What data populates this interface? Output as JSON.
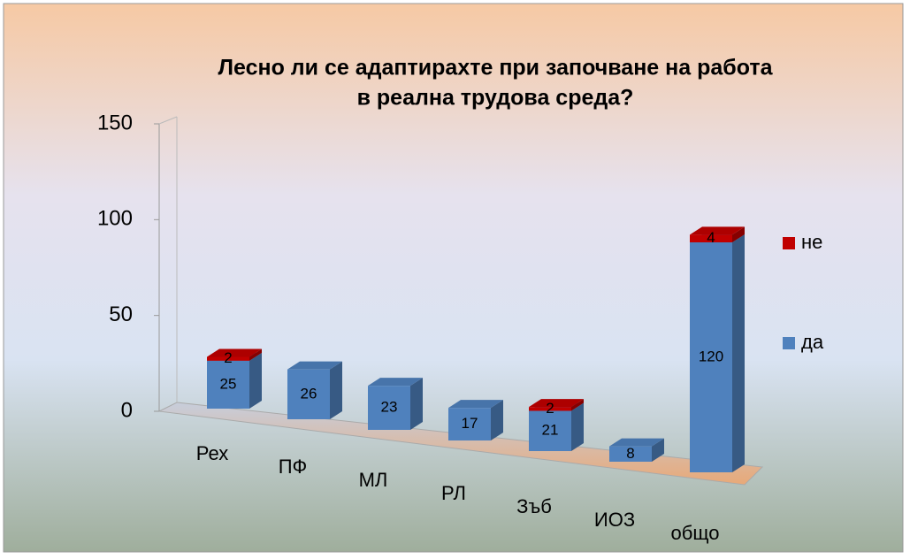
{
  "chart_data": {
    "type": "bar3d_stacked",
    "title": [
      "Лесно ли се адаптирахте при започване на работа",
      "в реална трудова среда?"
    ],
    "categories": [
      "Рех",
      "ПФ",
      "МЛ",
      "РЛ",
      "Зъб",
      "ИОЗ",
      "общо"
    ],
    "series": [
      {
        "name": "да",
        "color": "#4f81bd",
        "values": [
          25,
          26,
          23,
          17,
          21,
          8,
          120
        ]
      },
      {
        "name": "не",
        "color": "#c00000",
        "values": [
          2,
          null,
          null,
          null,
          2,
          null,
          4
        ]
      }
    ],
    "ylim": [
      0,
      150
    ],
    "yticks": [
      0,
      50,
      100,
      150
    ],
    "legend": "right"
  }
}
